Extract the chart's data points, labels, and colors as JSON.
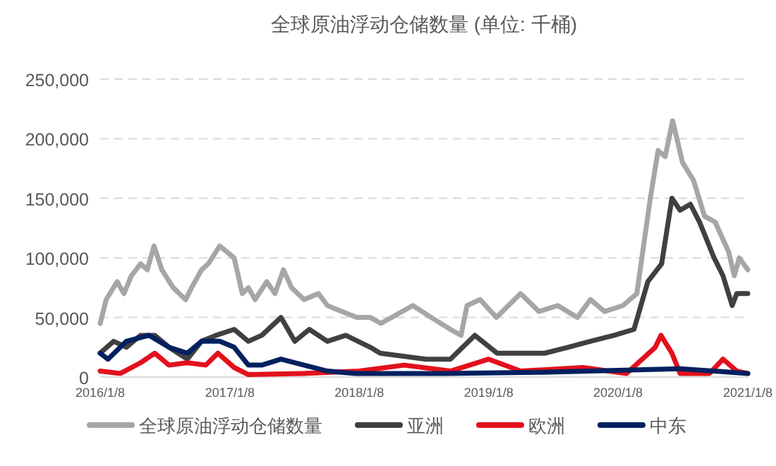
{
  "chart_data": {
    "type": "line",
    "title": "全球原油浮动仓储数量 (单位: 千桶)",
    "xlim": [
      "2016-01-08",
      "2021-01-08"
    ],
    "xticks": [
      {
        "value": "2016-01-08",
        "label": "2016/1/8"
      },
      {
        "value": "2017-01-08",
        "label": "2017/1/8"
      },
      {
        "value": "2018-01-08",
        "label": "2018/1/8"
      },
      {
        "value": "2019-01-08",
        "label": "2019/1/8"
      },
      {
        "value": "2020-01-08",
        "label": "2020/1/8"
      },
      {
        "value": "2021-01-08",
        "label": "2021/1/8"
      }
    ],
    "ylim": [
      0,
      250000
    ],
    "yticks": [
      0,
      {
        "value": 50000,
        "label": "50,000"
      },
      {
        "value": 100000,
        "label": "100,000"
      },
      {
        "value": 150000,
        "label": "150,000"
      },
      {
        "value": 200000,
        "label": "200,000"
      },
      {
        "value": 250000,
        "label": "250,000"
      }
    ],
    "grid": "y",
    "legend": "bottom",
    "series": [
      {
        "name": "全球原油浮动仓储数量",
        "color": "#a6a6a6",
        "x": [
          "2016-01-08",
          "2016-01-25",
          "2016-02-25",
          "2016-03-15",
          "2016-04-05",
          "2016-05-01",
          "2016-05-20",
          "2016-06-08",
          "2016-06-30",
          "2016-08-01",
          "2016-09-05",
          "2016-09-22",
          "2016-10-20",
          "2016-11-08",
          "2016-12-10",
          "2017-01-20",
          "2017-02-12",
          "2017-03-01",
          "2017-03-20",
          "2017-04-22",
          "2017-05-15",
          "2017-06-08",
          "2017-07-01",
          "2017-08-05",
          "2017-09-15",
          "2017-10-10",
          "2017-11-20",
          "2018-01-01",
          "2018-02-08",
          "2018-03-10",
          "2018-06-08",
          "2018-07-30",
          "2018-09-22",
          "2018-10-22",
          "2018-11-08",
          "2018-12-15",
          "2019-01-30",
          "2019-04-08",
          "2019-05-30",
          "2019-07-22",
          "2019-09-15",
          "2019-10-22",
          "2019-12-01",
          "2020-01-22",
          "2020-03-01",
          "2020-04-08",
          "2020-04-30",
          "2020-05-20",
          "2020-06-10",
          "2020-07-08",
          "2020-08-08",
          "2020-09-08",
          "2020-10-08",
          "2020-11-15",
          "2020-12-01",
          "2020-12-15",
          "2021-01-08"
        ],
        "values": [
          45000,
          65000,
          80000,
          70000,
          85000,
          95000,
          90000,
          110000,
          90000,
          75000,
          65000,
          75000,
          90000,
          95000,
          110000,
          100000,
          70000,
          75000,
          65000,
          80000,
          70000,
          90000,
          75000,
          65000,
          70000,
          60000,
          55000,
          50000,
          50000,
          45000,
          60000,
          50000,
          40000,
          35000,
          60000,
          65000,
          50000,
          70000,
          55000,
          60000,
          50000,
          65000,
          55000,
          60000,
          70000,
          150000,
          190000,
          185000,
          215000,
          180000,
          165000,
          135000,
          130000,
          105000,
          85000,
          100000,
          90000
        ]
      },
      {
        "name": "亚洲",
        "color": "#404040",
        "x": [
          "2016-01-08",
          "2016-02-15",
          "2016-03-22",
          "2016-05-01",
          "2016-06-10",
          "2016-07-20",
          "2016-09-10",
          "2016-10-20",
          "2016-11-30",
          "2017-01-20",
          "2017-03-01",
          "2017-04-08",
          "2017-06-01",
          "2017-07-10",
          "2017-08-20",
          "2017-10-10",
          "2017-12-01",
          "2018-02-08",
          "2018-03-08",
          "2018-07-15",
          "2018-09-22",
          "2018-11-30",
          "2019-02-01",
          "2019-06-15",
          "2019-08-20",
          "2019-10-22",
          "2019-12-28",
          "2020-02-22",
          "2020-04-01",
          "2020-05-10",
          "2020-06-08",
          "2020-07-01",
          "2020-07-30",
          "2020-08-25",
          "2020-10-05",
          "2020-10-30",
          "2020-11-25",
          "2020-12-08",
          "2021-01-08"
        ],
        "values": [
          20000,
          30000,
          25000,
          35000,
          35000,
          25000,
          15000,
          30000,
          35000,
          40000,
          30000,
          35000,
          50000,
          30000,
          40000,
          30000,
          35000,
          25000,
          20000,
          15000,
          15000,
          35000,
          20000,
          20000,
          25000,
          30000,
          35000,
          40000,
          80000,
          95000,
          150000,
          140000,
          145000,
          130000,
          100000,
          85000,
          60000,
          70000,
          70000
        ]
      },
      {
        "name": "欧洲",
        "color": "#e3101c",
        "x": [
          "2016-01-08",
          "2016-03-05",
          "2016-05-01",
          "2016-06-10",
          "2016-07-20",
          "2016-09-10",
          "2016-11-01",
          "2016-12-05",
          "2017-01-20",
          "2017-03-01",
          "2017-08-01",
          "2018-01-08",
          "2018-05-15",
          "2018-09-22",
          "2019-01-08",
          "2019-04-08",
          "2019-10-01",
          "2020-02-01",
          "2020-04-22",
          "2020-05-08",
          "2020-06-08",
          "2020-07-01",
          "2020-09-22",
          "2020-10-30",
          "2020-12-08",
          "2021-01-08"
        ],
        "values": [
          5000,
          3000,
          12000,
          20000,
          10000,
          12000,
          10000,
          20000,
          8000,
          2000,
          3000,
          5000,
          10000,
          5000,
          15000,
          5000,
          8000,
          3000,
          25000,
          35000,
          20000,
          3000,
          3000,
          15000,
          5000,
          3000
        ]
      },
      {
        "name": "中东",
        "color": "#002060",
        "x": [
          "2016-01-08",
          "2016-01-30",
          "2016-03-22",
          "2016-05-25",
          "2016-07-20",
          "2016-09-10",
          "2016-10-20",
          "2016-12-10",
          "2017-01-20",
          "2017-03-01",
          "2017-04-08",
          "2017-06-01",
          "2017-08-05",
          "2017-10-10",
          "2017-12-28",
          "2018-09-01",
          "2019-06-08",
          "2020-07-01",
          "2021-01-08"
        ],
        "values": [
          20000,
          15000,
          30000,
          35000,
          25000,
          20000,
          30000,
          30000,
          25000,
          10000,
          10000,
          15000,
          10000,
          5000,
          3000,
          3000,
          4000,
          7000,
          3000
        ]
      }
    ]
  }
}
